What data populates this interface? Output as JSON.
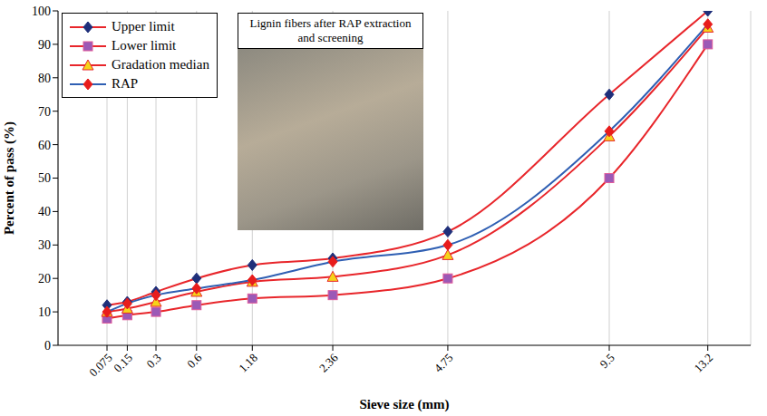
{
  "chart_data": {
    "type": "line",
    "annotation": "Lignin fibers after RAP extraction and screening",
    "x_label": "Sieve size (mm)",
    "y_label": "Percent of pass (%)",
    "x": [
      0.075,
      0.15,
      0.3,
      0.6,
      1.18,
      2.36,
      4.75,
      9.5,
      13.2
    ],
    "series": [
      {
        "name": "Upper limit",
        "color": "#e8262b",
        "marker": "diamond",
        "values": [
          12,
          13,
          16,
          20,
          24,
          26,
          34,
          75,
          100
        ]
      },
      {
        "name": "Lower limit",
        "color": "#e8262b",
        "marker": "square",
        "values": [
          8,
          9,
          10,
          12,
          14,
          15,
          20,
          50,
          90
        ]
      },
      {
        "name": "Gradation median",
        "color": "#e8262b",
        "marker": "triangle",
        "values": [
          10,
          11,
          13,
          16,
          19,
          20.5,
          27,
          62.5,
          95
        ]
      },
      {
        "name": "RAP",
        "color": "#2f5fb3",
        "marker": "diamond",
        "values": [
          10,
          12.5,
          15,
          17,
          19.5,
          25,
          30,
          64,
          96
        ]
      }
    ],
    "xlim": [
      0,
      15
    ],
    "xticks": [
      0.075,
      0.15,
      0.3,
      0.6,
      1.18,
      2.36,
      4.75,
      9.5,
      13.2
    ],
    "ylim": [
      0,
      100
    ],
    "yticks": [
      0,
      10,
      20,
      30,
      40,
      50,
      60,
      70,
      80,
      90,
      100
    ],
    "grid": true,
    "legend": "upper left"
  }
}
